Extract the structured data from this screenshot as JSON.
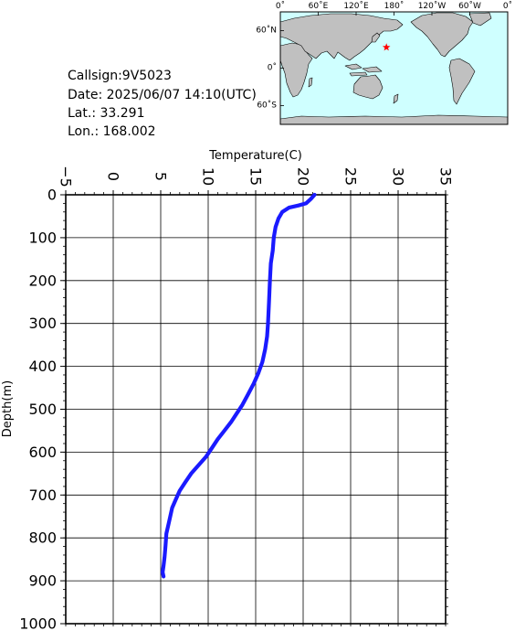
{
  "info": {
    "callsign": "Callsign:9V5023",
    "date": "Date:  2025/06/07 14:10(UTC)",
    "lat": "Lat.:  33.291",
    "lon": "Lon.:  168.002"
  },
  "map": {
    "top_labels": [
      "0˚",
      "60˚E",
      "120˚E",
      "180˚",
      "120˚W",
      "60˚W",
      "0˚"
    ],
    "left_labels": [
      "60˚N",
      "0˚",
      "60˚S"
    ],
    "ocean_color": "#cfffff",
    "land_color": "#c0c0c0",
    "marker": {
      "lat": 33.291,
      "lon": 168.002,
      "color": "#ff0000",
      "symbol": "star"
    }
  },
  "chart_data": {
    "type": "line",
    "xlabel": "Temperature(C)",
    "ylabel": "Depth(m)",
    "xlim": [
      -5,
      35
    ],
    "ylim": [
      0,
      1000
    ],
    "x_ticks": [
      "-5",
      "0",
      "5",
      "10",
      "15",
      "20",
      "25",
      "30",
      "35"
    ],
    "y_ticks": [
      "0",
      "100",
      "200",
      "300",
      "400",
      "500",
      "600",
      "700",
      "800",
      "900",
      "1000"
    ],
    "grid": true,
    "line_color": "#1a1aff",
    "series": [
      {
        "x": [
          21.2,
          20.8,
          20.3,
          19.5,
          18.5,
          17.8,
          17.4,
          17.1,
          16.9,
          16.8,
          16.6,
          16.5,
          16.4,
          16.3,
          16.2,
          16.0,
          15.7,
          15.3,
          14.8,
          14.2,
          13.6,
          13.0,
          12.4,
          11.7,
          11.0,
          10.4,
          9.8,
          9.0,
          8.2,
          7.6,
          7.0,
          6.6,
          6.2,
          5.9,
          5.6,
          5.5,
          5.4,
          5.3,
          5.2,
          5.3
        ],
        "y": [
          0,
          10,
          20,
          25,
          30,
          40,
          55,
          75,
          100,
          130,
          160,
          200,
          250,
          300,
          330,
          360,
          390,
          415,
          440,
          465,
          490,
          510,
          530,
          550,
          570,
          590,
          610,
          630,
          650,
          670,
          690,
          710,
          730,
          760,
          790,
          820,
          845,
          865,
          880,
          890
        ]
      }
    ]
  }
}
